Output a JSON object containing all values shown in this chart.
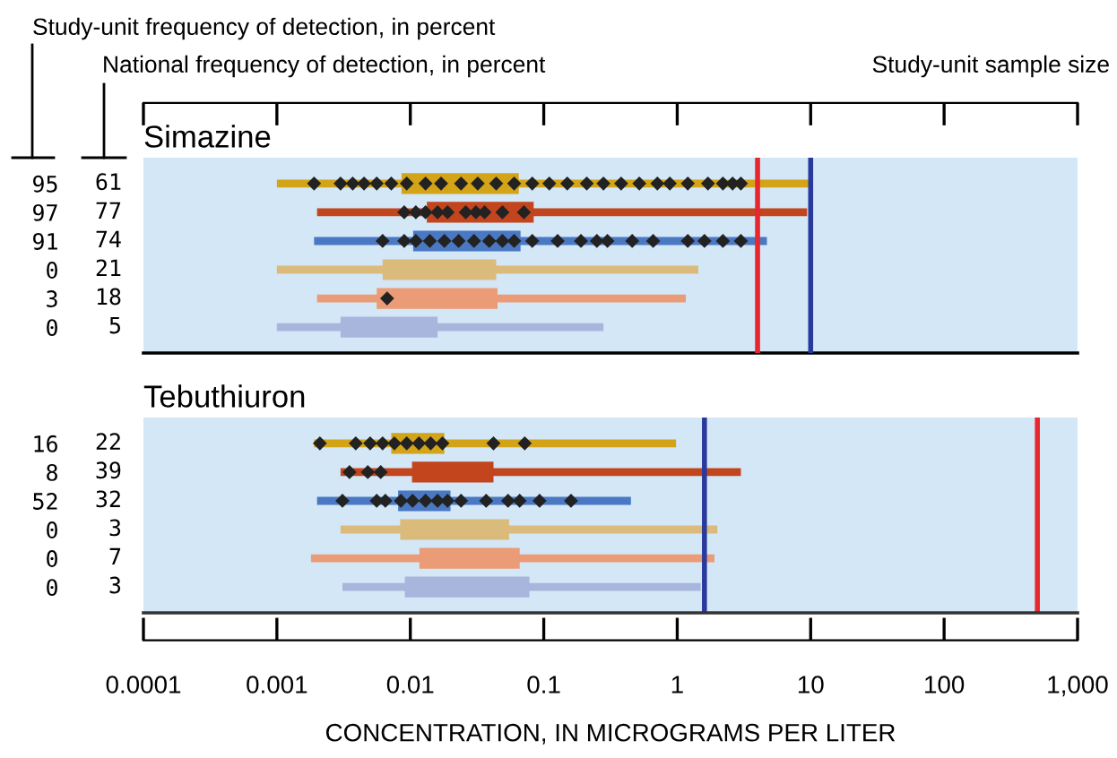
{
  "chart_data": [
    {
      "type": "box",
      "orientation": "horizontal",
      "title": "Simazine",
      "log": "x",
      "grid": false,
      "legend": false,
      "tick_labels": "y",
      "annotations": [
        "Study-unit frequency of detection, in percent",
        "National frequency of detection, in percent",
        "Study-unit sample size"
      ],
      "categories": [
        "95",
        "97",
        "91",
        "0",
        "3",
        "0"
      ],
      "y2_categories": [
        "61",
        "77",
        "74",
        "21",
        "18",
        "5"
      ],
      "xlim": [
        0.0001,
        1000
      ],
      "xticks": [
        0.0001,
        0.001,
        0.01,
        0.1,
        1,
        10,
        100,
        1000
      ],
      "series": [
        {
          "type": "box",
          "colors": [
            "#d4a418",
            "#c2451e",
            "#4a78c2",
            "#dbbb7b",
            "#eb9b75",
            "#a8b5dc"
          ],
          "boxes": [
            {
              "low": 0.001,
              "q1": 0.0086,
              "q3": 0.065,
              "high": 10
            },
            {
              "low": 0.002,
              "q1": 0.0133,
              "q3": 0.084,
              "high": 9.4
            },
            {
              "low": 0.0019,
              "q1": 0.0105,
              "q3": 0.067,
              "high": 4.7
            },
            {
              "low": 0.001,
              "q1": 0.0062,
              "q3": 0.044,
              "high": 1.44
            },
            {
              "low": 0.002,
              "q1": 0.0056,
              "q3": 0.045,
              "high": 1.16
            },
            {
              "low": 0.001,
              "q1": 0.003,
              "q3": 0.016,
              "high": 0.28
            }
          ]
        },
        {
          "type": "scatter",
          "color": "#222222",
          "marker": "diamond",
          "x": [
            "95",
            "95",
            "95",
            "95",
            "95",
            "95",
            "95",
            "95",
            "95",
            "95",
            "95",
            "95",
            "95",
            "95",
            "95",
            "95",
            "95",
            "95",
            "95",
            "95",
            "95",
            "95",
            "95",
            "95",
            "95",
            "95",
            "95",
            "97",
            "97",
            "97",
            "97",
            "97",
            "97",
            "97",
            "97",
            "97",
            "97",
            "91",
            "91",
            "91",
            "91",
            "91",
            "91",
            "91",
            "91",
            "91",
            "91",
            "91",
            "91",
            "91",
            "91",
            "91",
            "91",
            "91",
            "91",
            "91",
            "91",
            "91",
            "3"
          ],
          "values": [
            0.0019,
            0.003,
            0.0037,
            0.0045,
            0.0056,
            0.0072,
            0.0094,
            0.013,
            0.017,
            0.024,
            0.032,
            0.044,
            0.06,
            0.082,
            0.11,
            0.15,
            0.21,
            0.28,
            0.38,
            0.52,
            0.71,
            0.88,
            1.2,
            1.7,
            2.2,
            2.6,
            3.0,
            0.009,
            0.011,
            0.013,
            0.016,
            0.019,
            0.026,
            0.031,
            0.036,
            0.049,
            0.071,
            0.0062,
            0.009,
            0.011,
            0.014,
            0.018,
            0.023,
            0.03,
            0.039,
            0.049,
            0.06,
            0.082,
            0.127,
            0.19,
            0.25,
            0.3,
            0.46,
            0.66,
            1.2,
            1.6,
            2.2,
            3.0,
            0.0067
          ]
        }
      ],
      "ref_lines": [
        {
          "axis": "x",
          "value": 4,
          "color": "#e8262f"
        },
        {
          "axis": "x",
          "value": 10,
          "color": "#2a3a9c"
        }
      ]
    },
    {
      "type": "box",
      "orientation": "horizontal",
      "title": "Tebuthiuron",
      "log": "x",
      "grid": false,
      "legend": false,
      "xlabel": "CONCENTRATION, IN MICROGRAMS PER LITER",
      "categories": [
        "16",
        "8",
        "52",
        "0",
        "0",
        "0"
      ],
      "y2_categories": [
        "22",
        "39",
        "32",
        "3",
        "7",
        "3"
      ],
      "xlim": [
        0.0001,
        1000
      ],
      "xticks": [
        0.0001,
        0.001,
        0.01,
        0.1,
        1,
        10,
        100,
        {
          "value": 1000,
          "label": "1,000"
        }
      ],
      "series": [
        {
          "type": "box",
          "colors": [
            "#d4a418",
            "#c2451e",
            "#4a78c2",
            "#dbbb7b",
            "#eb9b75",
            "#a8b5dc"
          ],
          "boxes": [
            {
              "low": 0.0019,
              "q1": 0.0072,
              "q3": 0.018,
              "high": 0.98
            },
            {
              "low": 0.003,
              "q1": 0.0103,
              "q3": 0.042,
              "high": 3
            },
            {
              "low": 0.002,
              "q1": 0.0081,
              "q3": 0.02,
              "high": 0.45
            },
            {
              "low": 0.003,
              "q1": 0.0084,
              "q3": 0.055,
              "high": 2.0
            },
            {
              "low": 0.0018,
              "q1": 0.0117,
              "q3": 0.066,
              "high": 1.9
            },
            {
              "low": 0.0031,
              "q1": 0.0091,
              "q3": 0.078,
              "high": 1.5
            }
          ]
        },
        {
          "type": "scatter",
          "color": "#222222",
          "marker": "diamond",
          "x": [
            "16",
            "16",
            "16",
            "16",
            "16",
            "16",
            "16",
            "16",
            "16",
            "16",
            "16",
            "8",
            "8",
            "8",
            "52",
            "52",
            "52",
            "52",
            "52",
            "52",
            "52",
            "52",
            "52",
            "52",
            "52",
            "52",
            "52",
            "52"
          ],
          "values": [
            0.0021,
            0.0039,
            0.005,
            0.0062,
            0.0076,
            0.0094,
            0.0116,
            0.0142,
            0.0174,
            0.042,
            0.072,
            0.0035,
            0.0048,
            0.006,
            0.0031,
            0.0056,
            0.0065,
            0.0085,
            0.0104,
            0.013,
            0.016,
            0.019,
            0.024,
            0.037,
            0.054,
            0.066,
            0.093,
            0.16
          ]
        }
      ],
      "ref_lines": [
        {
          "axis": "x",
          "value": 1.6,
          "color": "#2a3a9c"
        },
        {
          "axis": "x",
          "value": 500,
          "color": "#e8262f"
        }
      ]
    }
  ]
}
